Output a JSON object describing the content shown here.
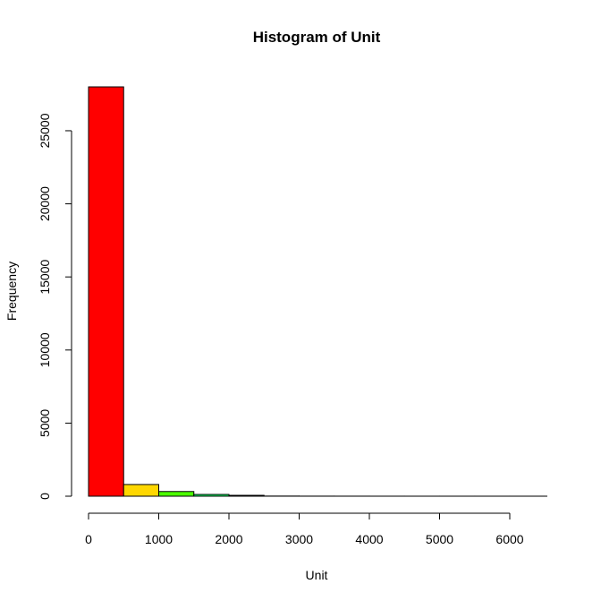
{
  "chart_data": {
    "type": "bar",
    "subtype": "histogram",
    "title": "Histogram of Unit",
    "xlabel": "Unit",
    "ylabel": "Frequency",
    "bins": [
      {
        "x0": 0,
        "x1": 500,
        "count": 28000,
        "color": "#ff0000"
      },
      {
        "x0": 500,
        "x1": 1000,
        "count": 800,
        "color": "#ffd700"
      },
      {
        "x0": 1000,
        "x1": 1500,
        "count": 320,
        "color": "#4cff00"
      },
      {
        "x0": 1500,
        "x1": 2000,
        "count": 120,
        "color": "#00ff66"
      },
      {
        "x0": 2000,
        "x1": 2500,
        "count": 60,
        "color": "#00ffe6"
      },
      {
        "x0": 2500,
        "x1": 3000,
        "count": 10,
        "color": "#0099ff"
      },
      {
        "x0": 3000,
        "x1": 3500,
        "count": 5,
        "color": "#0019ff"
      },
      {
        "x0": 3500,
        "x1": 4000,
        "count": 3,
        "color": "#6600ff"
      },
      {
        "x0": 4000,
        "x1": 4500,
        "count": 2,
        "color": "#e500ff"
      },
      {
        "x0": 4500,
        "x1": 5000,
        "count": 1,
        "color": "#ff0099"
      },
      {
        "x0": 5000,
        "x1": 5500,
        "count": 1,
        "color": "#ff0019"
      },
      {
        "x0": 5500,
        "x1": 6000,
        "count": 1,
        "color": "#ff4c00"
      },
      {
        "x0": 6000,
        "x1": 6500,
        "count": 1,
        "color": "#ffcc00"
      }
    ],
    "xticks": [
      0,
      1000,
      2000,
      3000,
      4000,
      5000,
      6000
    ],
    "xtick_labels": [
      "0",
      "1000",
      "2000",
      "3000",
      "4000",
      "5000",
      "6000"
    ],
    "yticks": [
      0,
      5000,
      10000,
      15000,
      20000,
      25000
    ],
    "ytick_labels": [
      "0",
      "5000",
      "10000",
      "15000",
      "20000",
      "25000"
    ],
    "xlim": [
      0,
      6500
    ],
    "ylim": [
      0,
      28000
    ],
    "grid": false,
    "legend": "none"
  }
}
